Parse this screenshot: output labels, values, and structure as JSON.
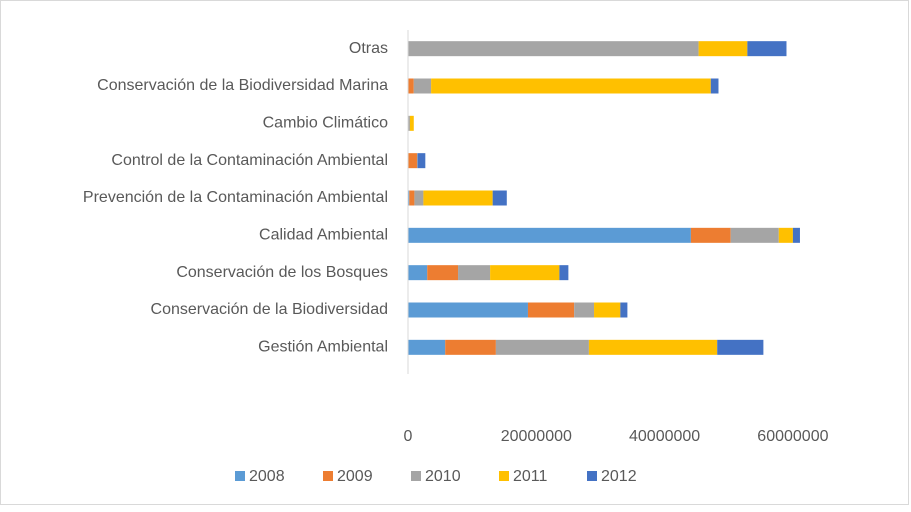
{
  "chart_data": {
    "type": "stacked_barh",
    "categories": [
      "Gestión Ambiental",
      "Conservación de la Biodiversidad",
      "Conservación de los Bosques",
      "Calidad Ambiental",
      "Prevención de la Contaminación Ambiental",
      "Control de la Contaminación Ambiental",
      "Cambio Climático",
      "Conservación de la Biodiversidad Marina",
      "Otras"
    ],
    "series": [
      {
        "name": "2008",
        "color": "#5b9bd5",
        "values": [
          5800000,
          18700000,
          3000000,
          44100000,
          200000,
          0,
          0,
          0,
          0
        ]
      },
      {
        "name": "2009",
        "color": "#ed7d31",
        "values": [
          7900000,
          7200000,
          4800000,
          6200000,
          800000,
          1400000,
          0,
          900000,
          0
        ]
      },
      {
        "name": "2010",
        "color": "#a5a5a5",
        "values": [
          14500000,
          3100000,
          5000000,
          7500000,
          1400000,
          100000,
          300000,
          2700000,
          45300000
        ]
      },
      {
        "name": "2011",
        "color": "#ffc000",
        "values": [
          20000000,
          4100000,
          10800000,
          2200000,
          10800000,
          0,
          600000,
          43600000,
          7600000
        ]
      },
      {
        "name": "2012",
        "color": "#4472c4",
        "values": [
          7200000,
          1100000,
          1400000,
          1100000,
          2200000,
          1200000,
          0,
          1200000,
          6100000
        ]
      }
    ],
    "xlim": [
      0,
      70000000
    ],
    "xticks": [
      0,
      20000000,
      40000000,
      60000000
    ],
    "grid": false,
    "legend": "bottom"
  }
}
